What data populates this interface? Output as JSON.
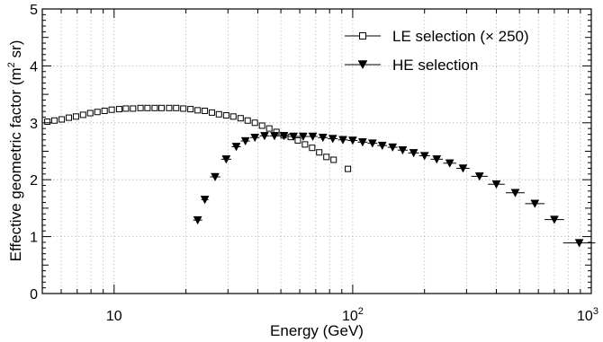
{
  "chart_data": {
    "type": "scatter",
    "title": "",
    "xlabel": "Energy (GeV)",
    "ylabel_main": "Effective geometric factor (m",
    "ylabel_sup": "2",
    "ylabel_end": " sr)",
    "xscale": "log",
    "xlim": [
      5,
      1000
    ],
    "ylim": [
      0,
      5
    ],
    "grid": true,
    "legend_position": "top-right",
    "x_tick_labels": [
      {
        "value": 10,
        "base": "10",
        "exp": ""
      },
      {
        "value": 100,
        "base": "10",
        "exp": "2"
      },
      {
        "value": 1000,
        "base": "10",
        "exp": "3"
      }
    ],
    "y_tick_labels": [
      "0",
      "1",
      "2",
      "3",
      "4",
      "5"
    ],
    "series": [
      {
        "name": "LE selection (× 250)",
        "marker": "open-square",
        "x": [
          5.25,
          5.62,
          6.03,
          6.46,
          6.92,
          7.41,
          7.94,
          8.51,
          9.12,
          9.77,
          10.5,
          11.2,
          12.0,
          12.9,
          13.8,
          14.8,
          15.8,
          17.0,
          18.2,
          19.5,
          20.9,
          22.4,
          24.0,
          25.7,
          27.5,
          29.5,
          31.6,
          33.9,
          36.3,
          38.9,
          41.7,
          44.7,
          47.9,
          51.3,
          55.0,
          58.9,
          63.1,
          67.6,
          72.4,
          77.6,
          83.2,
          95.5
        ],
        "y": [
          3.02,
          3.04,
          3.06,
          3.09,
          3.11,
          3.14,
          3.17,
          3.19,
          3.21,
          3.23,
          3.24,
          3.25,
          3.25,
          3.26,
          3.26,
          3.26,
          3.26,
          3.26,
          3.26,
          3.25,
          3.24,
          3.22,
          3.21,
          3.18,
          3.15,
          3.13,
          3.11,
          3.08,
          3.04,
          3.0,
          2.95,
          2.9,
          2.84,
          2.78,
          2.75,
          2.69,
          2.62,
          2.56,
          2.48,
          2.4,
          2.35,
          2.19
        ]
      },
      {
        "name": "HE selection",
        "marker": "filled-triangle-down",
        "x": [
          22.4,
          24.0,
          26.5,
          29.5,
          32.5,
          35.5,
          38.9,
          42.7,
          47.0,
          51.5,
          56.5,
          62.0,
          68.0,
          75.0,
          82.5,
          91.0,
          100.0,
          110.0,
          121.0,
          133.0,
          147.0,
          162.0,
          180.0,
          200.0,
          225.0,
          255.0,
          290.0,
          340.0,
          400.0,
          480.0,
          580.0,
          700.0,
          890.0
        ],
        "y": [
          1.29,
          1.65,
          2.05,
          2.36,
          2.58,
          2.68,
          2.74,
          2.77,
          2.77,
          2.77,
          2.76,
          2.76,
          2.76,
          2.74,
          2.72,
          2.7,
          2.69,
          2.66,
          2.64,
          2.6,
          2.57,
          2.52,
          2.47,
          2.42,
          2.36,
          2.29,
          2.2,
          2.06,
          1.92,
          1.77,
          1.58,
          1.3,
          0.89
        ],
        "xerr_low": [
          0,
          0,
          0,
          0,
          0,
          0,
          0,
          0,
          0,
          0,
          0,
          0,
          0,
          0,
          0,
          0,
          0,
          0,
          0,
          0,
          0,
          0,
          0,
          0,
          0,
          0,
          0,
          0,
          0,
          0,
          0,
          0,
          0
        ]
      }
    ]
  }
}
